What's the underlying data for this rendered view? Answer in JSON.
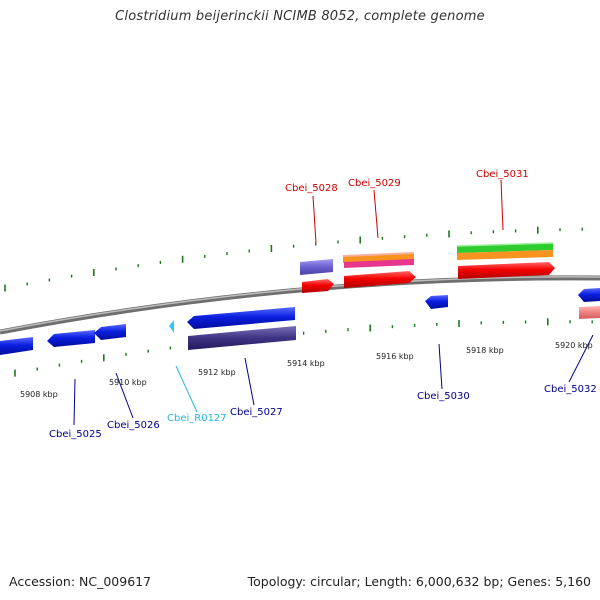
{
  "title": "Clostridium beijerinckii NCIMB 8052, complete genome",
  "footer": {
    "accession": "Accession: NC_009617",
    "topology": "Topology: circular; Length: 6,000,632 bp; Genes: 5,160"
  },
  "ticks": [
    "5908 kbp",
    "5910 kbp",
    "5912 kbp",
    "5914 kbp",
    "5916 kbp",
    "5918 kbp",
    "5920 kbp"
  ],
  "genes": [
    {
      "name": "Cbei_5025",
      "color": "#00008b"
    },
    {
      "name": "Cbei_5026",
      "color": "#00008b"
    },
    {
      "name": "Cbei_R0127",
      "color": "#22b8e0"
    },
    {
      "name": "Cbei_5027",
      "color": "#00008b"
    },
    {
      "name": "Cbei_5028",
      "color": "#cc0000"
    },
    {
      "name": "Cbei_5029",
      "color": "#cc0000"
    },
    {
      "name": "Cbei_5030",
      "color": "#00008b"
    },
    {
      "name": "Cbei_5031",
      "color": "#cc0000"
    },
    {
      "name": "Cbei_5032",
      "color": "#00008b"
    }
  ]
}
